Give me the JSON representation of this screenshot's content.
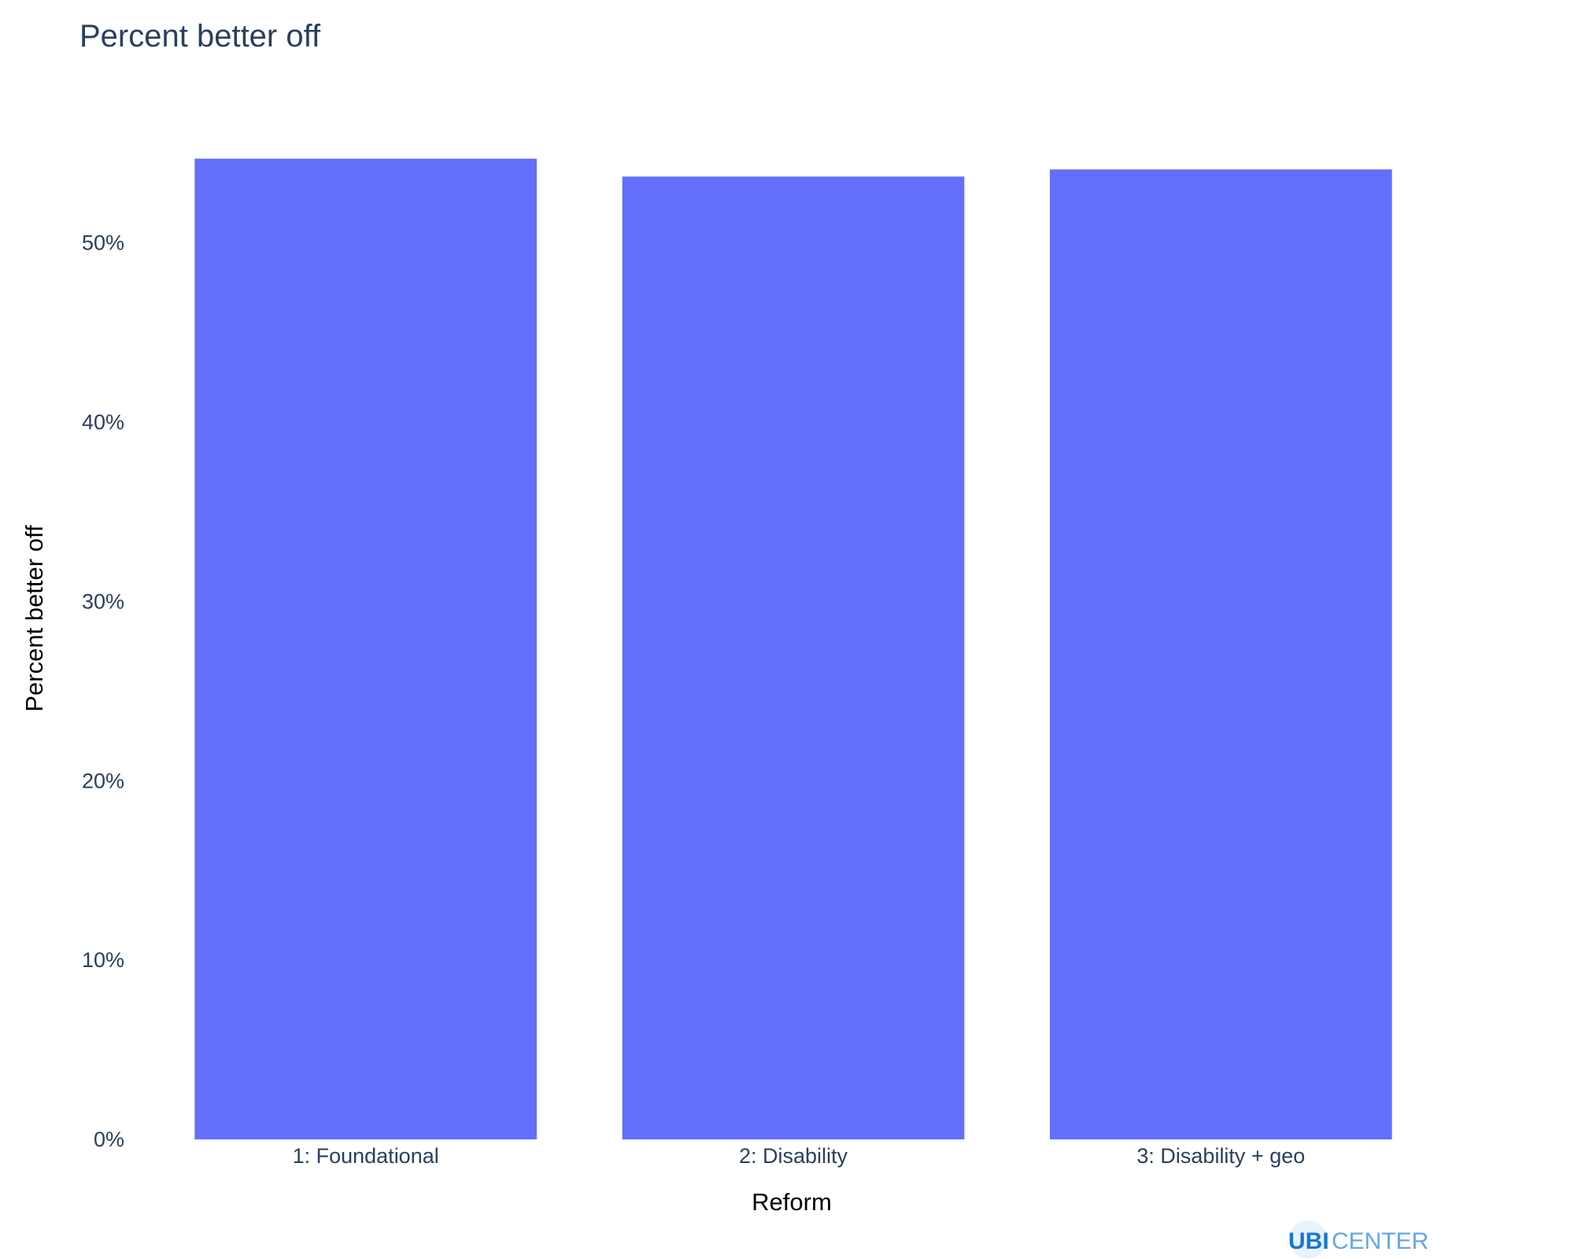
{
  "chart_data": {
    "type": "bar",
    "title": "Percent better off",
    "xlabel": "Reform",
    "ylabel": "Percent better off",
    "categories": [
      "1: Foundational",
      "2: Disability",
      "3: Disability + geo"
    ],
    "values": [
      54.7,
      53.7,
      54.1
    ],
    "ylim": [
      0,
      56
    ],
    "yticks": [
      0,
      10,
      20,
      30,
      40,
      50
    ],
    "ytick_labels": [
      "0%",
      "10%",
      "20%",
      "30%",
      "40%",
      "50%"
    ],
    "bar_color": "#636efa",
    "grid": false,
    "legend": "none"
  },
  "branding": {
    "logo_primary": "UBI",
    "logo_secondary": "CENTER",
    "logo_primary_color": "#1976d2",
    "logo_secondary_color": "#64a6e8"
  }
}
